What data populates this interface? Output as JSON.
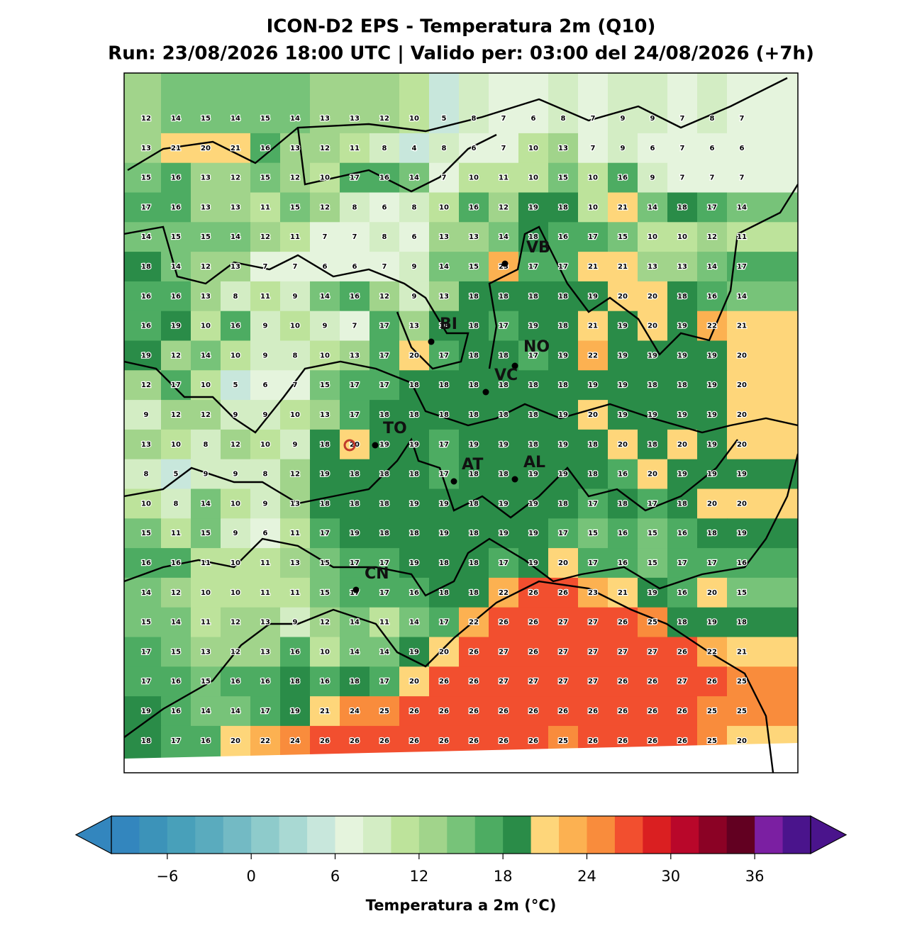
{
  "map": {
    "title": "ICON-D2 EPS - Temperatura 2m (Q10)",
    "subtitle": "Run: 23/08/2026 18:00 UTC | Valido per: 03:00 del 24/08/2026 (+7h)",
    "grid": [
      [
        12,
        14,
        15,
        14,
        15,
        14,
        13,
        13,
        12,
        10,
        5,
        8,
        7,
        6,
        8,
        7,
        9,
        9,
        7,
        8,
        7
      ],
      [
        13,
        21,
        20,
        21,
        16,
        13,
        12,
        11,
        8,
        4,
        8,
        6,
        7,
        10,
        13,
        7,
        9,
        6,
        7,
        6,
        6
      ],
      [
        15,
        16,
        13,
        12,
        15,
        12,
        10,
        17,
        16,
        14,
        7,
        10,
        11,
        10,
        15,
        10,
        16,
        9,
        7,
        7,
        7
      ],
      [
        17,
        16,
        13,
        13,
        11,
        15,
        12,
        8,
        6,
        8,
        10,
        16,
        12,
        19,
        18,
        10,
        21,
        14,
        18,
        17,
        14
      ],
      [
        14,
        15,
        15,
        14,
        12,
        11,
        7,
        7,
        8,
        6,
        13,
        13,
        14,
        18,
        16,
        17,
        15,
        10,
        10,
        12,
        11
      ],
      [
        18,
        14,
        12,
        13,
        7,
        7,
        6,
        6,
        7,
        9,
        14,
        15,
        23,
        17,
        17,
        21,
        21,
        13,
        13,
        14,
        17
      ],
      [
        16,
        16,
        13,
        8,
        11,
        9,
        14,
        16,
        12,
        9,
        13,
        18,
        18,
        18,
        18,
        19,
        20,
        20,
        18,
        16,
        14
      ],
      [
        16,
        19,
        10,
        16,
        9,
        10,
        9,
        7,
        17,
        13,
        18,
        18,
        17,
        19,
        18,
        21,
        19,
        20,
        19,
        22,
        21
      ],
      [
        19,
        12,
        14,
        10,
        9,
        8,
        10,
        13,
        17,
        20,
        17,
        18,
        18,
        17,
        19,
        22,
        19,
        19,
        19,
        19,
        20
      ],
      [
        12,
        17,
        10,
        5,
        6,
        7,
        15,
        17,
        17,
        18,
        18,
        18,
        18,
        18,
        18,
        19,
        19,
        18,
        18,
        19,
        20
      ],
      [
        9,
        12,
        12,
        9,
        9,
        10,
        13,
        17,
        18,
        18,
        18,
        18,
        18,
        18,
        19,
        20,
        19,
        19,
        19,
        19,
        20
      ],
      [
        13,
        10,
        8,
        12,
        10,
        9,
        18,
        20,
        19,
        19,
        17,
        19,
        19,
        18,
        19,
        18,
        20,
        18,
        20,
        19,
        20
      ],
      [
        8,
        5,
        9,
        9,
        8,
        12,
        19,
        18,
        18,
        18,
        17,
        18,
        18,
        19,
        19,
        18,
        16,
        20,
        19,
        19,
        19
      ],
      [
        10,
        8,
        14,
        10,
        9,
        13,
        18,
        18,
        18,
        19,
        19,
        18,
        19,
        19,
        18,
        17,
        18,
        17,
        18,
        20,
        20
      ],
      [
        15,
        11,
        15,
        9,
        6,
        11,
        17,
        19,
        18,
        18,
        19,
        18,
        19,
        19,
        17,
        15,
        16,
        15,
        16,
        18,
        19
      ],
      [
        16,
        16,
        11,
        10,
        11,
        13,
        15,
        17,
        17,
        19,
        18,
        18,
        17,
        19,
        20,
        17,
        16,
        15,
        17,
        17,
        16
      ],
      [
        14,
        12,
        10,
        10,
        11,
        11,
        15,
        17,
        17,
        16,
        18,
        18,
        22,
        26,
        26,
        23,
        21,
        19,
        16,
        20,
        15
      ],
      [
        15,
        14,
        11,
        12,
        13,
        9,
        12,
        14,
        11,
        14,
        17,
        22,
        26,
        26,
        27,
        27,
        26,
        25,
        18,
        19,
        18
      ],
      [
        17,
        15,
        13,
        12,
        13,
        16,
        10,
        14,
        14,
        19,
        20,
        26,
        27,
        26,
        27,
        27,
        27,
        27,
        26,
        22,
        21
      ],
      [
        17,
        16,
        15,
        16,
        16,
        18,
        16,
        18,
        17,
        20,
        26,
        26,
        27,
        27,
        27,
        27,
        26,
        26,
        27,
        26,
        25
      ],
      [
        19,
        16,
        14,
        14,
        17,
        19,
        21,
        24,
        25,
        26,
        26,
        26,
        26,
        26,
        26,
        26,
        26,
        26,
        26,
        25,
        25
      ],
      [
        18,
        17,
        16,
        20,
        22,
        24,
        26,
        26,
        26,
        26,
        26,
        26,
        26,
        26,
        25,
        26,
        26,
        26,
        26,
        25,
        20
      ]
    ],
    "cities": [
      "VB",
      "BI",
      "NO",
      "VC",
      "TO",
      "AT",
      "AL",
      "CN"
    ],
    "colorbar": {
      "label": "Temperatura a 2m (°C)",
      "range": [
        -10,
        40
      ],
      "step": 2,
      "ticks": [
        {
          "value": -6,
          "label": "−6"
        },
        0,
        6,
        12,
        18,
        24,
        30,
        36
      ],
      "colors": [
        "#3386be",
        "#3c93b9",
        "#48a0ba",
        "#5aabbe",
        "#73bac4",
        "#8ecbcb",
        "#a9d9d3",
        "#c8e7dc",
        "#e5f4dd",
        "#d3edc4",
        "#bde39b",
        "#a1d48b",
        "#77c379",
        "#4dac62",
        "#2a8c48",
        "#fed67a",
        "#fcb151",
        "#f98c3c",
        "#f24f2f",
        "#da1f21",
        "#b9072a",
        "#8b0225",
        "#620021",
        "#7b1fa2",
        "#4a148c"
      ]
    }
  }
}
